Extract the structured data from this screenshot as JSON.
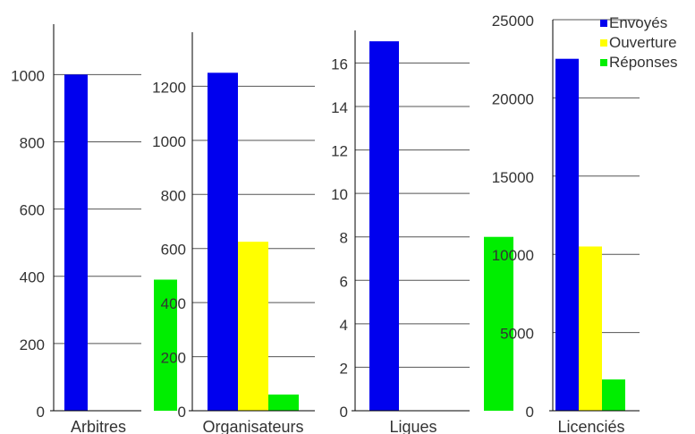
{
  "chart_data": [
    {
      "type": "bar",
      "categories": [
        "Arbitres"
      ],
      "series": [
        {
          "name": "Envoyés",
          "values": [
            1000
          ]
        },
        {
          "name": "Ouverture",
          "values": [
            0
          ]
        },
        {
          "name": "Réponses",
          "values": [
            390
          ]
        }
      ],
      "ylim": [
        0,
        1150
      ],
      "yticks": [
        0,
        200,
        400,
        600,
        800,
        1000
      ],
      "grid": true
    },
    {
      "type": "bar",
      "categories": [
        "Organisateurs"
      ],
      "series": [
        {
          "name": "Envoyés",
          "values": [
            1250
          ]
        },
        {
          "name": "Ouverture",
          "values": [
            625
          ]
        },
        {
          "name": "Réponses",
          "values": [
            60
          ]
        }
      ],
      "ylim": [
        0,
        1400
      ],
      "yticks": [
        0,
        200,
        400,
        600,
        800,
        1000,
        1200
      ],
      "grid": true
    },
    {
      "type": "bar",
      "categories": [
        "Ligues"
      ],
      "series": [
        {
          "name": "Envoyés",
          "values": [
            17
          ]
        },
        {
          "name": "Ouverture",
          "values": [
            0
          ]
        },
        {
          "name": "Réponses",
          "values": [
            8
          ]
        }
      ],
      "ylim": [
        0,
        17.5
      ],
      "yticks": [
        0,
        2,
        4,
        6,
        8,
        10,
        12,
        14,
        16
      ],
      "grid": true
    },
    {
      "type": "bar",
      "categories": [
        "Licenciés"
      ],
      "series": [
        {
          "name": "Envoyés",
          "values": [
            22500
          ]
        },
        {
          "name": "Ouverture",
          "values": [
            10500
          ]
        },
        {
          "name": "Réponses",
          "values": [
            2000
          ]
        }
      ],
      "ylim": [
        0,
        25000
      ],
      "yticks": [
        0,
        5000,
        10000,
        15000,
        20000,
        25000
      ],
      "grid": true
    }
  ],
  "legend": {
    "placement": "top-right",
    "items": [
      {
        "label": "Envoyés",
        "color": "#0000ee"
      },
      {
        "label": "Ouverture",
        "color": "#ffff00"
      },
      {
        "label": "Réponses",
        "color": "#00ee00"
      }
    ]
  },
  "colors": {
    "axis": "#000000",
    "grid": "#555555",
    "text": "#333333"
  }
}
